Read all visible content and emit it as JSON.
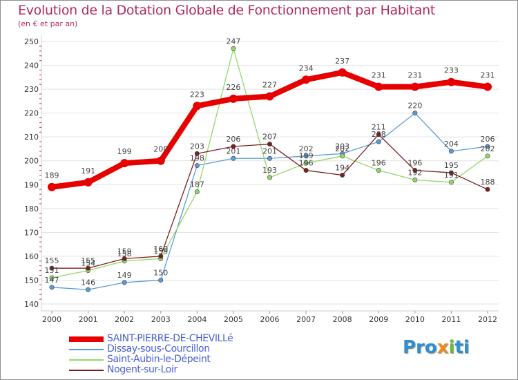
{
  "chart_data": {
    "type": "line",
    "title": "Evolution de la Dotation Globale de Fonctionnement par Habitant",
    "subtitle": "(en € et par an)",
    "xlabel": "",
    "ylabel": "",
    "categories": [
      "2000",
      "2001",
      "2002",
      "2003",
      "2004",
      "2005",
      "2006",
      "2007",
      "2008",
      "2009",
      "2010",
      "2011",
      "2012"
    ],
    "ylim": [
      140,
      250
    ],
    "yticks": [
      140,
      150,
      160,
      170,
      180,
      190,
      200,
      210,
      220,
      230,
      240,
      250
    ],
    "grid": "horizontal",
    "series": [
      {
        "name": "SAINT-PIERRE-DE-CHEVILLé",
        "color": "#e60000",
        "values": [
          189,
          191,
          199,
          200,
          223,
          226,
          227,
          234,
          237,
          231,
          231,
          233,
          231
        ]
      },
      {
        "name": "Dissay-sous-Courcillon",
        "color": "#5b9bd5",
        "values": [
          147,
          146,
          149,
          150,
          198,
          201,
          201,
          202,
          203,
          208,
          220,
          204,
          206
        ]
      },
      {
        "name": "Saint-Aubin-le-Dépeint",
        "color": "#8fd866",
        "values": [
          151,
          154,
          158,
          159,
          187,
          247,
          193,
          199,
          202,
          196,
          192,
          191,
          202
        ]
      },
      {
        "name": "Nogent-sur-Loir",
        "color": "#7a1f1f",
        "values": [
          155,
          155,
          159,
          160,
          203,
          206,
          207,
          196,
          194,
          211,
          196,
          195,
          188
        ]
      }
    ]
  },
  "logo": {
    "p1": "Pro",
    "p2": "x",
    "p3": "i",
    "p4": "ti"
  }
}
